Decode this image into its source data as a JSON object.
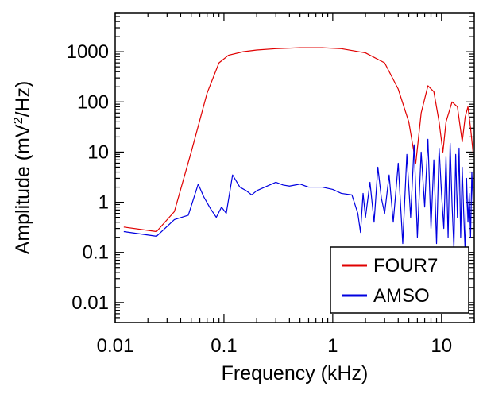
{
  "chart_data": {
    "type": "line",
    "xlabel": "Frequency (kHz)",
    "ylabel_main": "Amplitude (mV",
    "ylabel_sup": "2",
    "ylabel_tail": "/Hz)",
    "xscale": "log",
    "yscale": "log",
    "xlim": [
      0.01,
      20
    ],
    "ylim": [
      0.004,
      6000
    ],
    "x_ticks": [
      {
        "value": 0.01,
        "label": "0.01"
      },
      {
        "value": 0.1,
        "label": "0.1"
      },
      {
        "value": 1,
        "label": "1"
      },
      {
        "value": 10,
        "label": "10"
      }
    ],
    "y_ticks": [
      {
        "value": 0.01,
        "label": "0.01"
      },
      {
        "value": 0.1,
        "label": "0.1"
      },
      {
        "value": 1,
        "label": "1"
      },
      {
        "value": 10,
        "label": "10"
      },
      {
        "value": 100,
        "label": "100"
      },
      {
        "value": 1000,
        "label": "1000"
      }
    ],
    "grid": false,
    "legend_position": "bottom-right",
    "series": [
      {
        "name": "FOUR7",
        "color": "#e00000",
        "x": [
          0.012,
          0.024,
          0.035,
          0.05,
          0.07,
          0.09,
          0.11,
          0.15,
          0.2,
          0.3,
          0.5,
          0.8,
          1.2,
          2,
          3,
          4,
          5,
          5.8,
          6.5,
          7.5,
          8.5,
          9.5,
          10.3,
          11,
          12.5,
          14,
          15.5,
          16.5,
          17.5,
          18.5,
          19.5
        ],
        "y": [
          0.32,
          0.26,
          0.65,
          10,
          150,
          600,
          850,
          1000,
          1080,
          1150,
          1200,
          1200,
          1150,
          950,
          600,
          180,
          40,
          6,
          60,
          210,
          160,
          40,
          10,
          40,
          100,
          80,
          16,
          50,
          80,
          30,
          10
        ]
      },
      {
        "name": "AMSO",
        "color": "#0000e0",
        "x": [
          0.012,
          0.024,
          0.035,
          0.047,
          0.058,
          0.065,
          0.075,
          0.085,
          0.095,
          0.105,
          0.12,
          0.14,
          0.16,
          0.18,
          0.2,
          0.25,
          0.3,
          0.35,
          0.4,
          0.5,
          0.6,
          0.8,
          1.0,
          1.2,
          1.5,
          1.7,
          1.8,
          1.9,
          2.0,
          2.2,
          2.4,
          2.6,
          2.8,
          3.0,
          3.3,
          3.6,
          4.0,
          4.4,
          4.8,
          5.2,
          5.6,
          6.0,
          6.5,
          7.0,
          7.5,
          8.0,
          8.5,
          9.0,
          9.5,
          10.0,
          10.5,
          11.0,
          11.5,
          12.0,
          12.5,
          13.0,
          13.5,
          14.0,
          14.5,
          15.0,
          15.5,
          16.0,
          16.5,
          17.0,
          17.5,
          18.0,
          18.5,
          19.0,
          19.5
        ],
        "y": [
          0.26,
          0.21,
          0.45,
          0.55,
          2.3,
          1.3,
          0.75,
          0.5,
          0.8,
          0.6,
          3.5,
          2.0,
          1.7,
          1.4,
          1.7,
          2.1,
          2.5,
          2.2,
          2.1,
          2.3,
          2.0,
          2.0,
          1.8,
          1.5,
          1.4,
          0.6,
          0.25,
          1.5,
          0.5,
          2.5,
          0.4,
          5.0,
          1.2,
          0.6,
          3.5,
          0.4,
          6.0,
          0.15,
          9.0,
          0.5,
          14.0,
          0.2,
          10.0,
          0.8,
          18.0,
          0.3,
          7.0,
          0.15,
          12.0,
          1.5,
          0.3,
          8.0,
          0.2,
          15.0,
          0.9,
          0.12,
          9.0,
          0.5,
          12.0,
          0.2,
          5.0,
          0.6,
          0.1,
          3.0,
          0.4,
          1.5,
          0.2,
          4.0,
          1.0
        ]
      }
    ]
  }
}
